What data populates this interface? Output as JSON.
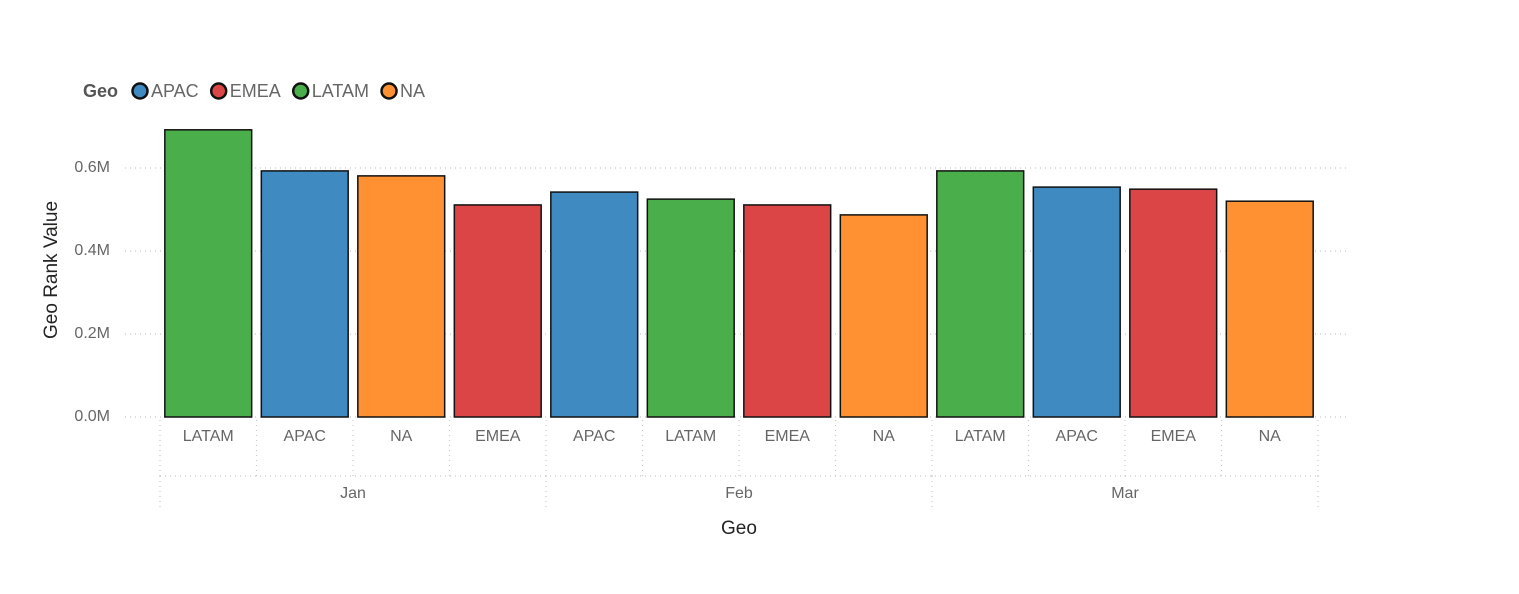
{
  "chart_data": {
    "type": "bar",
    "legend_title": "Geo",
    "x_label": "Geo",
    "y_label": "Geo Rank Value",
    "categories": [
      "LATAM",
      "APAC",
      "NA",
      "EMEA",
      "APAC",
      "LATAM",
      "EMEA",
      "NA",
      "LATAM",
      "APAC",
      "EMEA",
      "NA"
    ],
    "category_groups": [
      "Jan",
      "Feb",
      "Mar"
    ],
    "series": [
      {
        "name": "APAC",
        "color": "#3f8ac0",
        "values": [
          null,
          593000,
          null,
          null,
          542000,
          null,
          null,
          null,
          null,
          554000,
          null,
          null
        ]
      },
      {
        "name": "EMEA",
        "color": "#dc4546",
        "values": [
          null,
          null,
          null,
          511000,
          null,
          null,
          511000,
          null,
          null,
          null,
          549000,
          null
        ]
      },
      {
        "name": "LATAM",
        "color": "#4aaf4a",
        "values": [
          692000,
          null,
          null,
          null,
          null,
          525000,
          null,
          null,
          593000,
          null,
          null,
          null
        ]
      },
      {
        "name": "NA",
        "color": "#ff9132",
        "values": [
          null,
          null,
          581000,
          null,
          null,
          null,
          null,
          487000,
          null,
          null,
          null,
          520000
        ]
      }
    ],
    "ylim": [
      0,
      700000
    ],
    "yticks": [
      {
        "value": 0,
        "label": "0.0M"
      },
      {
        "value": 200000,
        "label": "0.2M"
      },
      {
        "value": 400000,
        "label": "0.4M"
      },
      {
        "value": 600000,
        "label": "0.6M"
      }
    ],
    "grid": true,
    "legend_position": "top-left"
  }
}
